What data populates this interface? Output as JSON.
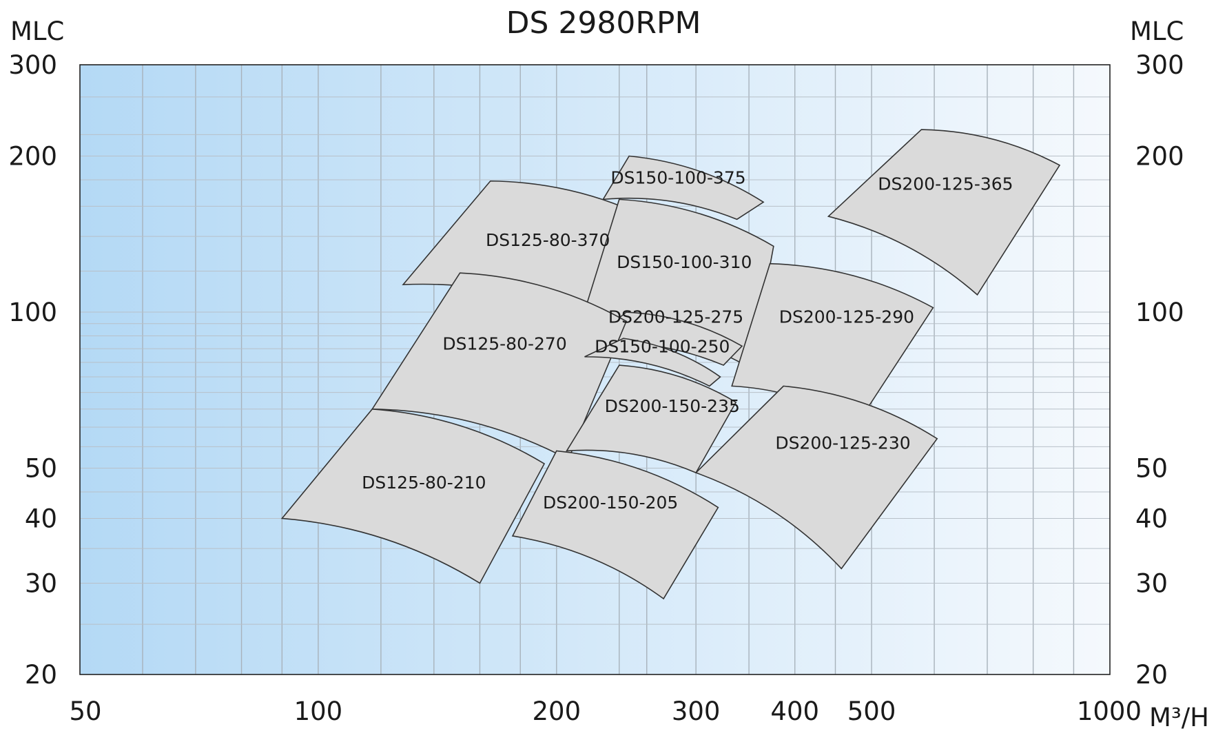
{
  "chart_data": {
    "type": "area",
    "title": "DS  2980RPM",
    "ylabel_left": "MLC",
    "ylabel_right": "MLC",
    "x_unit": "M³/H",
    "x_scale": "log",
    "y_scale": "log",
    "xlim": [
      50,
      1000
    ],
    "ylim": [
      20,
      300
    ],
    "x_ticks": [
      50,
      100,
      200,
      300,
      400,
      500,
      1000
    ],
    "y_ticks": [
      20,
      30,
      40,
      50,
      100,
      200,
      300
    ],
    "x_grid": [
      60,
      70,
      80,
      90,
      100,
      120,
      140,
      160,
      180,
      200,
      240,
      260,
      300,
      350,
      400,
      450,
      500,
      600,
      700,
      800,
      900
    ],
    "y_grid": [
      25,
      30,
      35,
      40,
      45,
      50,
      55,
      60,
      65,
      70,
      75,
      80,
      85,
      90,
      95,
      100,
      120,
      140,
      160,
      180,
      200,
      220,
      260
    ],
    "grid": true,
    "background": {
      "from": "#b4d9f5",
      "to": "#f5f9fd"
    },
    "regions": [
      {
        "name": "DS200-125-365",
        "points": [
          [
            578,
            225
          ],
          [
            864,
            192
          ],
          [
            680,
            108
          ],
          [
            441,
            153
          ]
        ],
        "label_at": [
          620,
          177
        ]
      },
      {
        "name": "DS150-100-375",
        "points": [
          [
            247,
            200
          ],
          [
            365,
            163
          ],
          [
            338,
            151
          ],
          [
            229,
            165
          ]
        ],
        "label_at": [
          285,
          182
        ]
      },
      {
        "name": "DS125-80-370",
        "points": [
          [
            165,
            179
          ],
          [
            270,
            148
          ],
          [
            236,
            94
          ],
          [
            128,
            113
          ]
        ],
        "label_at": [
          195,
          138
        ]
      },
      {
        "name": "DS150-100-310",
        "points": [
          [
            240,
            165
          ],
          [
            376,
            134
          ],
          [
            352,
            78
          ],
          [
            215,
            96
          ]
        ],
        "label_at": [
          290,
          125
        ]
      },
      {
        "name": "DS200-125-290",
        "points": [
          [
            372,
            124
          ],
          [
            598,
            102
          ],
          [
            480,
            61
          ],
          [
            333,
            72
          ]
        ],
        "label_at": [
          465,
          98
        ]
      },
      {
        "name": "DS200-125-275",
        "points": [
          [
            245,
            100
          ],
          [
            343,
            86
          ],
          [
            325,
            79
          ],
          [
            219,
            87
          ]
        ],
        "label_at": [
          283,
          98
        ]
      },
      {
        "name": "DS125-80-270",
        "points": [
          [
            151,
            119
          ],
          [
            245,
            96
          ],
          [
            207,
            52
          ],
          [
            117,
            65
          ]
        ],
        "label_at": [
          172,
          87
        ]
      },
      {
        "name": "DS150-100-250",
        "points": [
          [
            243,
            89
          ],
          [
            322,
            75
          ],
          [
            312,
            72
          ],
          [
            217,
            82
          ]
        ],
        "label_at": [
          272,
          86
        ]
      },
      {
        "name": "DS200-150-235",
        "points": [
          [
            240,
            79
          ],
          [
            337,
            67
          ],
          [
            300,
            49
          ],
          [
            206,
            54
          ]
        ],
        "label_at": [
          280,
          66
        ]
      },
      {
        "name": "DS200-125-230",
        "points": [
          [
            387,
            72
          ],
          [
            605,
            57
          ],
          [
            458,
            32
          ],
          [
            300,
            49
          ]
        ],
        "label_at": [
          460,
          56
        ]
      },
      {
        "name": "DS125-80-210",
        "points": [
          [
            117,
            65
          ],
          [
            193,
            51
          ],
          [
            160,
            30
          ],
          [
            90,
            40
          ]
        ],
        "label_at": [
          136,
          47
        ]
      },
      {
        "name": "DS200-150-205",
        "points": [
          [
            200,
            54
          ],
          [
            320,
            42
          ],
          [
            273,
            28
          ],
          [
            176,
            37
          ]
        ],
        "label_at": [
          234,
          43
        ]
      }
    ]
  }
}
